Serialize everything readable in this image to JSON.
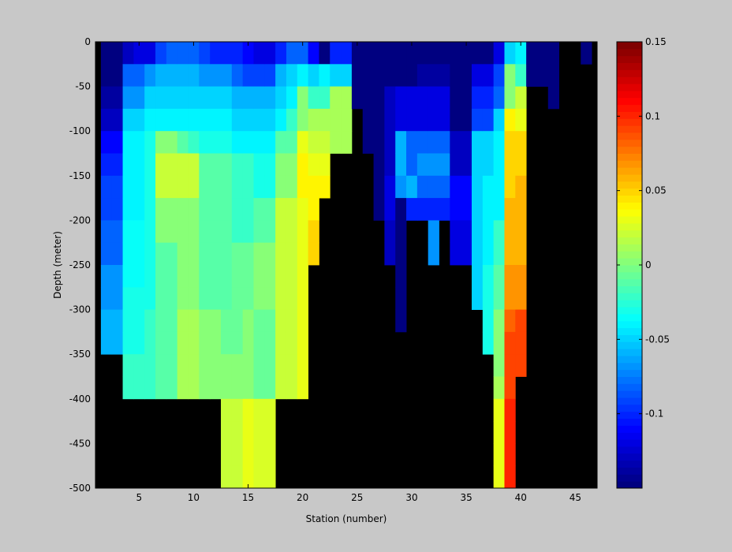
{
  "chart_data": {
    "type": "heatmap",
    "title": "",
    "xlabel": "Station (number)",
    "ylabel": "Depth (meter)",
    "xlim": [
      1,
      47
    ],
    "ylim": [
      -500,
      0
    ],
    "x_ticks": [
      5,
      10,
      15,
      20,
      25,
      30,
      35,
      40,
      45
    ],
    "y_ticks": [
      0,
      -50,
      -100,
      -150,
      -200,
      -250,
      -300,
      -350,
      -400,
      -450,
      -500
    ],
    "colorbar": {
      "range": [
        -0.15,
        0.15
      ],
      "ticks": [
        0.15,
        0.1,
        0.05,
        0,
        -0.05,
        -0.1
      ],
      "colormap": "jet"
    },
    "cell_height_m": 25,
    "missing_color": "#000000",
    "stations": [
      2,
      3,
      4,
      5,
      6,
      7,
      8,
      9,
      10,
      11,
      12,
      13,
      14,
      15,
      16,
      17,
      18,
      19,
      20,
      21,
      22,
      23,
      24,
      25,
      26,
      27,
      28,
      29,
      30,
      31,
      32,
      33,
      34,
      35,
      36,
      37,
      38,
      39,
      40,
      41,
      42,
      43,
      44,
      45,
      46
    ],
    "columns": [
      {
        "station": 2,
        "values": [
          -0.15,
          -0.15,
          -0.14,
          -0.13,
          -0.11,
          -0.1,
          -0.09,
          -0.09,
          -0.08,
          -0.08,
          -0.07,
          -0.07,
          -0.06,
          -0.06
        ]
      },
      {
        "station": 3,
        "values": [
          -0.15,
          -0.15,
          -0.14,
          -0.13,
          -0.11,
          -0.1,
          -0.09,
          -0.09,
          -0.08,
          -0.08,
          -0.07,
          -0.07,
          -0.06,
          -0.06
        ]
      },
      {
        "station": 4,
        "values": [
          -0.13,
          -0.08,
          -0.07,
          -0.05,
          -0.04,
          -0.04,
          -0.04,
          -0.04,
          -0.035,
          -0.035,
          -0.035,
          -0.03,
          -0.03,
          -0.03,
          -0.02,
          -0.02
        ]
      },
      {
        "station": 5,
        "values": [
          -0.12,
          -0.08,
          -0.07,
          -0.05,
          -0.04,
          -0.04,
          -0.04,
          -0.04,
          -0.035,
          -0.035,
          -0.035,
          -0.03,
          -0.03,
          -0.03,
          -0.02,
          -0.02
        ]
      },
      {
        "station": 6,
        "values": [
          -0.12,
          -0.07,
          -0.05,
          -0.04,
          -0.03,
          -0.03,
          -0.03,
          -0.03,
          -0.03,
          -0.03,
          -0.03,
          -0.03,
          -0.02,
          -0.02,
          -0.02,
          -0.02
        ]
      },
      {
        "station": 7,
        "values": [
          -0.09,
          -0.06,
          -0.05,
          -0.04,
          0.0,
          0.02,
          0.02,
          0.0,
          0.0,
          -0.01,
          -0.01,
          -0.01,
          -0.01,
          -0.01,
          -0.01,
          -0.01
        ]
      },
      {
        "station": 8,
        "values": [
          -0.08,
          -0.06,
          -0.05,
          -0.04,
          0.0,
          0.02,
          0.02,
          0.0,
          0.0,
          -0.01,
          -0.01,
          -0.01,
          -0.01,
          -0.01,
          -0.01,
          -0.01
        ]
      },
      {
        "station": 9,
        "values": [
          -0.08,
          -0.06,
          -0.05,
          -0.04,
          -0.01,
          0.02,
          0.02,
          0.0,
          0.0,
          0.0,
          0.0,
          0.0,
          0.01,
          0.01,
          0.01,
          0.01
        ]
      },
      {
        "station": 10,
        "values": [
          -0.08,
          -0.06,
          -0.05,
          -0.04,
          -0.02,
          0.02,
          0.02,
          0.0,
          0.0,
          0.0,
          0.0,
          0.0,
          0.01,
          0.01,
          0.01,
          0.01
        ]
      },
      {
        "station": 11,
        "values": [
          -0.09,
          -0.07,
          -0.05,
          -0.04,
          -0.03,
          -0.01,
          -0.01,
          -0.01,
          -0.01,
          -0.01,
          -0.01,
          -0.01,
          0.0,
          0.0,
          0.0,
          0.0
        ]
      },
      {
        "station": 12,
        "values": [
          -0.1,
          -0.07,
          -0.05,
          -0.04,
          -0.03,
          -0.01,
          -0.01,
          -0.01,
          -0.01,
          -0.01,
          -0.01,
          -0.01,
          0.0,
          0.0,
          0.0,
          0.0
        ]
      },
      {
        "station": 13,
        "values": [
          -0.1,
          -0.07,
          -0.05,
          -0.04,
          -0.03,
          -0.01,
          -0.01,
          -0.01,
          -0.01,
          -0.01,
          -0.01,
          -0.01,
          -0.005,
          -0.005,
          0.0,
          0.0,
          0.02,
          0.02,
          0.02,
          0.02
        ]
      },
      {
        "station": 14,
        "values": [
          -0.1,
          -0.08,
          -0.06,
          -0.05,
          -0.04,
          -0.02,
          -0.02,
          -0.02,
          -0.02,
          -0.005,
          -0.005,
          -0.005,
          -0.005,
          -0.005,
          0.0,
          0.0,
          0.02,
          0.02,
          0.02,
          0.02
        ]
      },
      {
        "station": 15,
        "values": [
          -0.11,
          -0.09,
          -0.06,
          -0.05,
          -0.04,
          -0.02,
          -0.02,
          -0.02,
          -0.02,
          -0.005,
          -0.005,
          -0.005,
          0.0,
          0.0,
          0.0,
          0.0,
          0.03,
          0.03,
          0.03,
          0.03
        ]
      },
      {
        "station": 16,
        "values": [
          -0.12,
          -0.09,
          -0.06,
          -0.05,
          -0.04,
          -0.03,
          -0.03,
          -0.01,
          -0.01,
          0.0,
          0.0,
          0.0,
          -0.005,
          -0.005,
          -0.005,
          -0.005,
          0.025,
          0.025,
          0.025,
          0.025
        ]
      },
      {
        "station": 17,
        "values": [
          -0.12,
          -0.09,
          -0.06,
          -0.05,
          -0.04,
          -0.03,
          -0.03,
          -0.01,
          -0.01,
          0.0,
          0.0,
          0.0,
          -0.005,
          -0.005,
          -0.005,
          -0.005,
          0.025,
          0.025,
          0.025,
          0.025
        ]
      },
      {
        "station": 18,
        "values": [
          -0.1,
          -0.06,
          -0.05,
          -0.04,
          -0.01,
          0.0,
          0.0,
          0.02,
          0.02,
          0.02,
          0.02,
          0.02,
          0.02,
          0.02,
          0.02,
          0.02
        ]
      },
      {
        "station": 19,
        "values": [
          -0.08,
          -0.05,
          -0.04,
          -0.02,
          -0.01,
          0.0,
          0.0,
          0.02,
          0.02,
          0.02,
          0.02,
          0.02,
          0.02,
          0.02,
          0.02,
          0.02
        ]
      },
      {
        "station": 20,
        "values": [
          -0.08,
          -0.04,
          0.0,
          0.0,
          0.03,
          0.04,
          0.04,
          0.03,
          0.03,
          0.03,
          0.03,
          0.03,
          0.03,
          0.03,
          0.03,
          0.03
        ]
      },
      {
        "station": 21,
        "values": [
          -0.11,
          -0.05,
          -0.02,
          0.01,
          0.02,
          0.03,
          0.04,
          0.04,
          0.05,
          0.05
        ]
      },
      {
        "station": 22,
        "values": [
          -0.15,
          -0.04,
          -0.02,
          0.01,
          0.02,
          0.03,
          0.04
        ]
      },
      {
        "station": 23,
        "values": [
          -0.1,
          -0.05,
          0.01,
          0.01,
          0.01
        ]
      },
      {
        "station": 24,
        "values": [
          -0.1,
          -0.05,
          0.01,
          0.01,
          0.01
        ]
      },
      {
        "station": 25,
        "values": [
          -0.15,
          -0.15,
          -0.15
        ]
      },
      {
        "station": 26,
        "values": [
          -0.15,
          -0.15,
          -0.15,
          -0.15,
          -0.15
        ]
      },
      {
        "station": 27,
        "values": [
          -0.15,
          -0.15,
          -0.15,
          -0.15,
          -0.15,
          -0.15,
          -0.15,
          -0.15
        ]
      },
      {
        "station": 28,
        "values": [
          -0.15,
          -0.15,
          -0.13,
          -0.13,
          -0.13,
          -0.13,
          -0.12,
          -0.12,
          -0.13,
          -0.13
        ]
      },
      {
        "station": 29,
        "values": [
          -0.15,
          -0.15,
          -0.12,
          -0.12,
          -0.06,
          -0.06,
          -0.07,
          -0.15,
          -0.15,
          -0.15,
          -0.15,
          -0.15,
          -0.15
        ]
      },
      {
        "station": 30,
        "values": [
          -0.15,
          -0.15,
          -0.12,
          -0.12,
          -0.08,
          -0.08,
          -0.06,
          -0.1
        ]
      },
      {
        "station": 31,
        "values": [
          -0.15,
          -0.14,
          -0.12,
          -0.12,
          -0.08,
          -0.07,
          -0.08,
          -0.1
        ]
      },
      {
        "station": 32,
        "values": [
          -0.15,
          -0.14,
          -0.12,
          -0.12,
          -0.08,
          -0.07,
          -0.08,
          -0.1,
          -0.07,
          -0.07
        ]
      },
      {
        "station": 33,
        "values": [
          -0.15,
          -0.14,
          -0.12,
          -0.12,
          -0.08,
          -0.07,
          -0.08,
          -0.1
        ]
      },
      {
        "station": 34,
        "values": [
          -0.15,
          -0.15,
          -0.15,
          -0.15,
          -0.13,
          -0.13,
          -0.11,
          -0.11,
          -0.12,
          -0.12
        ]
      },
      {
        "station": 35,
        "values": [
          -0.15,
          -0.15,
          -0.15,
          -0.15,
          -0.13,
          -0.13,
          -0.11,
          -0.11,
          -0.12,
          -0.12
        ]
      },
      {
        "station": 36,
        "values": [
          -0.15,
          -0.12,
          -0.1,
          -0.09,
          -0.05,
          -0.05,
          -0.05,
          -0.05,
          -0.05,
          -0.05,
          -0.05,
          -0.05
        ]
      },
      {
        "station": 37,
        "values": [
          -0.15,
          -0.12,
          -0.1,
          -0.09,
          -0.05,
          -0.05,
          -0.04,
          -0.04,
          -0.04,
          -0.04,
          -0.03,
          -0.03,
          -0.03,
          -0.03
        ]
      },
      {
        "station": 38,
        "values": [
          -0.12,
          -0.09,
          -0.08,
          -0.05,
          -0.04,
          -0.04,
          -0.04,
          -0.04,
          -0.02,
          -0.02,
          -0.01,
          -0.01,
          0.0,
          0.0,
          0.0,
          0.01,
          0.03,
          0.03,
          0.03,
          0.03
        ]
      },
      {
        "station": 39,
        "values": [
          -0.05,
          0.0,
          0.0,
          0.04,
          0.05,
          0.05,
          0.05,
          0.06,
          0.06,
          0.06,
          0.07,
          0.07,
          0.08,
          0.09,
          0.09,
          0.09,
          0.1,
          0.1,
          0.1,
          0.1
        ]
      },
      {
        "station": 40,
        "values": [
          -0.04,
          -0.02,
          0.02,
          0.03,
          0.05,
          0.05,
          0.06,
          0.06,
          0.06,
          0.06,
          0.07,
          0.07,
          0.09,
          0.09,
          0.09
        ]
      },
      {
        "station": 41,
        "values": [
          -0.15,
          -0.15
        ]
      },
      {
        "station": 42,
        "values": [
          -0.15,
          -0.15
        ]
      },
      {
        "station": 43,
        "values": [
          -0.15,
          -0.15,
          -0.15
        ]
      },
      {
        "station": 44,
        "values": []
      },
      {
        "station": 45,
        "values": []
      },
      {
        "station": 46,
        "values": [
          -0.15
        ]
      }
    ]
  }
}
